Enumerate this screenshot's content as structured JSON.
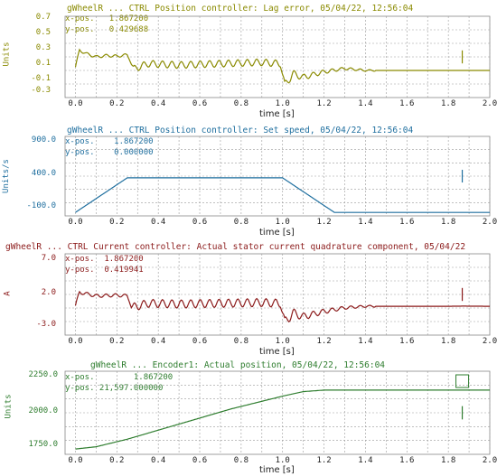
{
  "panels": [
    {
      "title": "gWheelR ... CTRL Position controller: Lag error, 05/04/22, 12:56:04",
      "unit": "Units",
      "color": "#8a8a00",
      "y_ticks": [
        "0.7",
        "0.5",
        "0.3",
        "0.1",
        "-0.1",
        "-0.3"
      ],
      "x_ticks": [
        "0.0",
        "0.2",
        "0.4",
        "0.6",
        "0.8",
        "1.0",
        "1.2",
        "1.4",
        "1.6",
        "1.8",
        "2.0"
      ],
      "xlabel": "time [s]",
      "xpos": "x-pos.   1.867200",
      "ypos": "y-pos.   0.429688"
    },
    {
      "title": "gWheelR ... CTRL Position controller: Set speed, 05/04/22, 12:56:04",
      "unit": "Units/s",
      "color": "#1f6f9f",
      "y_ticks": [
        "900.0",
        "400.0",
        "-100.0"
      ],
      "x_ticks": [
        "0.0",
        "0.2",
        "0.4",
        "0.6",
        "0.8",
        "1.0",
        "1.2",
        "1.4",
        "1.6",
        "1.8",
        "2.0"
      ],
      "xlabel": "time [s]",
      "xpos": "x-pos.    1.867200",
      "ypos": "y-pos.    0.000000"
    },
    {
      "title": "gWheelR ... CTRL Current controller: Actual stator current quadrature component, 05/04/22",
      "unit": "A",
      "color": "#8b1a1a",
      "y_ticks": [
        "7.0",
        "2.0",
        "-3.0"
      ],
      "x_ticks": [
        "0.0",
        "0.2",
        "0.4",
        "0.6",
        "0.8",
        "1.0",
        "1.2",
        "1.4",
        "1.6",
        "1.8",
        "2.0"
      ],
      "xlabel": "time [s]",
      "xpos": "x-pos.  1.867200",
      "ypos": "y-pos.  0.419941"
    },
    {
      "title": "gWheelR ... Encoder1: Actual position, 05/04/22, 12:56:04",
      "unit": "Units",
      "color": "#2e7d2e",
      "y_ticks": [
        "2250.0",
        "2000.0",
        "1750.0"
      ],
      "x_ticks": [
        "0.0",
        "0.2",
        "0.4",
        "0.6",
        "0.8",
        "1.0",
        "1.2",
        "1.4",
        "1.6",
        "1.8",
        "2.0"
      ],
      "xlabel": "time [s]",
      "xpos": "x-pos.        1.867200",
      "ypos": "y-pos. 21,597.000000"
    }
  ],
  "chart_data": [
    {
      "type": "line",
      "title": "gWheelR ... CTRL Position controller: Lag error, 05/04/22, 12:56:04",
      "xlabel": "time [s]",
      "ylabel": "Units",
      "xlim": [
        -0.05,
        2.0
      ],
      "ylim": [
        -0.4,
        0.8
      ],
      "x": [
        0.0,
        0.02,
        0.05,
        0.1,
        0.15,
        0.2,
        0.25,
        0.28,
        0.35,
        0.5,
        0.7,
        0.9,
        0.99,
        1.01,
        1.05,
        1.1,
        1.2,
        1.3,
        1.4,
        1.6,
        1.8,
        1.87,
        2.0
      ],
      "y": [
        0.05,
        0.3,
        0.25,
        0.2,
        0.22,
        0.21,
        0.23,
        0.02,
        0.1,
        0.08,
        0.1,
        0.12,
        0.1,
        -0.22,
        -0.05,
        -0.1,
        -0.02,
        0.03,
        0.0,
        0.0,
        0.0,
        0.0,
        0.0
      ]
    },
    {
      "type": "line",
      "title": "gWheelR ... CTRL Position controller: Set speed, 05/04/22, 12:56:04",
      "xlabel": "time [s]",
      "ylabel": "Units/s",
      "xlim": [
        -0.05,
        2.0
      ],
      "ylim": [
        -150,
        1000
      ],
      "x": [
        0.0,
        0.25,
        1.0,
        1.25,
        2.0
      ],
      "y": [
        -100,
        400,
        400,
        -100,
        -100
      ]
    },
    {
      "type": "line",
      "title": "gWheelR ... CTRL Current controller: Actual stator current quadrature component, 05/04/22",
      "xlabel": "time [s]",
      "ylabel": "A",
      "xlim": [
        -0.05,
        2.0
      ],
      "ylim": [
        -3.5,
        7.5
      ],
      "x": [
        0.0,
        0.02,
        0.1,
        0.2,
        0.25,
        0.27,
        0.35,
        0.5,
        0.7,
        0.9,
        0.99,
        1.01,
        1.05,
        1.1,
        1.2,
        1.3,
        1.4,
        1.6,
        1.8,
        1.87,
        2.0
      ],
      "y": [
        0.5,
        2.3,
        1.8,
        1.9,
        1.8,
        0.2,
        0.8,
        0.7,
        0.8,
        0.9,
        0.8,
        -1.8,
        -0.5,
        -1.0,
        -0.3,
        0.2,
        0.4,
        0.4,
        0.4,
        0.42,
        0.4
      ]
    },
    {
      "type": "line",
      "title": "gWheelR ... Encoder1: Actual position, 05/04/22, 12:56:04",
      "xlabel": "time [s]",
      "ylabel": "Units",
      "xlim": [
        -0.05,
        2.0
      ],
      "ylim": [
        1740,
        2290
      ],
      "x": [
        0.0,
        0.1,
        0.25,
        0.5,
        0.75,
        1.0,
        1.1,
        1.2,
        1.4,
        1.6,
        1.8,
        2.0
      ],
      "y": [
        1775,
        1790,
        1840,
        1940,
        2040,
        2125,
        2155,
        2165,
        2165,
        2165,
        2165,
        2165
      ]
    }
  ]
}
